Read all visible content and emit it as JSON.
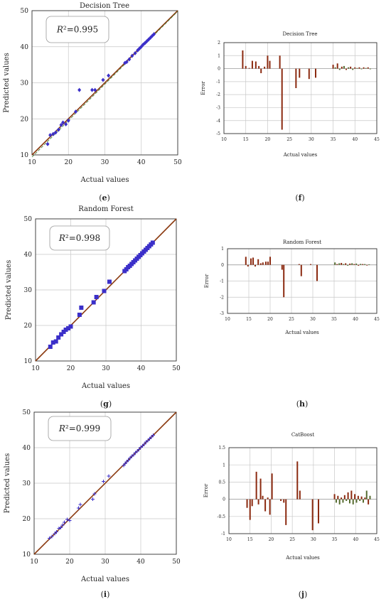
{
  "colors": {
    "marker": "#3b2fc9",
    "line": "#8b3a10",
    "bar": "#8b2a10",
    "bar_alt": "#556b2f",
    "grid": "#c8c8c8",
    "axis": "#333333"
  },
  "chart_data": [
    {
      "id": "e",
      "type": "scatter",
      "panel_label": "(e)",
      "title": "Decision Tree",
      "xlabel": "Actual values",
      "ylabel": "Predicted values",
      "xlim": [
        10,
        50
      ],
      "ylim": [
        10,
        50
      ],
      "xticks": [
        10,
        20,
        30,
        40,
        50
      ],
      "yticks": [
        10,
        20,
        30,
        40,
        50
      ],
      "r2_label": "R²=0.995",
      "marker": "diamond",
      "grid": true,
      "points": [
        [
          14.3,
          13
        ],
        [
          15,
          15.5
        ],
        [
          15.8,
          15.8
        ],
        [
          16.5,
          16.2
        ],
        [
          17.3,
          17
        ],
        [
          18,
          18.3
        ],
        [
          18.5,
          19
        ],
        [
          19.3,
          18.5
        ],
        [
          20,
          19.5
        ],
        [
          22,
          22
        ],
        [
          23,
          28
        ],
        [
          26.5,
          28
        ],
        [
          27.3,
          28
        ],
        [
          29.5,
          30.8
        ],
        [
          31,
          32
        ],
        [
          35.5,
          35.5
        ],
        [
          36,
          35.8
        ],
        [
          36.7,
          36.5
        ],
        [
          37.5,
          37.5
        ],
        [
          38.3,
          38.2
        ],
        [
          39,
          39
        ],
        [
          39.5,
          39.5
        ],
        [
          40,
          40
        ],
        [
          40.5,
          40.6
        ],
        [
          41,
          41
        ],
        [
          41.5,
          41.5
        ],
        [
          42,
          42
        ],
        [
          42.5,
          42.5
        ],
        [
          43,
          43
        ],
        [
          43.5,
          43.5
        ]
      ]
    },
    {
      "id": "f",
      "type": "bar",
      "panel_label": "(f)",
      "title": "Decision Tree",
      "xlabel": "Actual values",
      "ylabel": "Error",
      "xlim": [
        10,
        45
      ],
      "ylim": [
        -5,
        2
      ],
      "xticks": [
        10,
        15,
        20,
        25,
        30,
        35,
        40,
        45
      ],
      "yticks": [
        -5,
        -4,
        -3,
        -2,
        -1,
        0,
        1,
        2
      ],
      "grid": true,
      "points": [
        [
          14.3,
          1.4
        ],
        [
          15,
          0.2
        ],
        [
          15.8,
          0.05
        ],
        [
          16.5,
          0.6
        ],
        [
          17.3,
          0.55
        ],
        [
          18,
          0.2
        ],
        [
          18.5,
          -0.35
        ],
        [
          19.3,
          0.15
        ],
        [
          20,
          1
        ],
        [
          20.5,
          0.6
        ],
        [
          22.8,
          1
        ],
        [
          23.3,
          -4.7
        ],
        [
          26.5,
          -1.5
        ],
        [
          27.3,
          -0.7
        ],
        [
          29.5,
          -0.8
        ],
        [
          31,
          -0.7
        ],
        [
          35,
          0.3
        ],
        [
          35.5,
          0.1
        ],
        [
          36,
          0.4
        ],
        [
          36.5,
          -0.1
        ],
        [
          37,
          0.15
        ],
        [
          37.5,
          0.2
        ],
        [
          38,
          -0.1
        ],
        [
          38.5,
          0.1
        ],
        [
          39,
          0.15
        ],
        [
          39.5,
          -0.1
        ],
        [
          40,
          0.1
        ],
        [
          40.5,
          0.05
        ],
        [
          41,
          0.1
        ],
        [
          41.5,
          -0.05
        ],
        [
          42,
          0.1
        ],
        [
          42.5,
          0.05
        ],
        [
          43,
          0.1
        ],
        [
          43.5,
          -0.05
        ]
      ]
    },
    {
      "id": "g",
      "type": "scatter",
      "panel_label": "(g)",
      "title": "Random Forest",
      "xlabel": "Actual values",
      "ylabel": "Predicted values",
      "xlim": [
        10,
        50
      ],
      "ylim": [
        10,
        50
      ],
      "xticks": [
        10,
        20,
        30,
        40,
        50
      ],
      "yticks": [
        10,
        20,
        30,
        40,
        50
      ],
      "r2_label": "R²=0.998",
      "marker": "square",
      "grid": true,
      "points": [
        [
          14.2,
          14
        ],
        [
          15,
          15.2
        ],
        [
          15.8,
          15.5
        ],
        [
          16.5,
          16.6
        ],
        [
          17.3,
          17.5
        ],
        [
          18,
          18.2
        ],
        [
          18.6,
          18.8
        ],
        [
          19.3,
          19.2
        ],
        [
          20,
          19.7
        ],
        [
          22.5,
          23
        ],
        [
          23,
          25
        ],
        [
          26.5,
          26.5
        ],
        [
          27.3,
          28
        ],
        [
          29.5,
          29.7
        ],
        [
          31,
          32.3
        ],
        [
          35.3,
          35.3
        ],
        [
          35.8,
          35.8
        ],
        [
          36.3,
          36.4
        ],
        [
          36.8,
          36.8
        ],
        [
          37.3,
          37.3
        ],
        [
          37.8,
          37.8
        ],
        [
          38.3,
          38.3
        ],
        [
          38.8,
          38.8
        ],
        [
          39.3,
          39.3
        ],
        [
          39.8,
          39.8
        ],
        [
          40.3,
          40.3
        ],
        [
          40.8,
          40.8
        ],
        [
          41.3,
          41.3
        ],
        [
          41.8,
          41.8
        ],
        [
          42.3,
          42.3
        ],
        [
          42.8,
          42.8
        ],
        [
          43.3,
          43.3
        ]
      ]
    },
    {
      "id": "h",
      "type": "bar",
      "panel_label": "(h)",
      "title": "Random Forest",
      "xlabel": "Actual values",
      "ylabel": "Error",
      "xlim": [
        10,
        45
      ],
      "ylim": [
        -3,
        1
      ],
      "xticks": [
        10,
        15,
        20,
        25,
        30,
        35,
        40,
        45
      ],
      "yticks": [
        -3,
        -2,
        -1,
        0,
        1
      ],
      "grid": true,
      "points": [
        [
          14.3,
          0.5
        ],
        [
          14.8,
          -0.1
        ],
        [
          15.5,
          0.4
        ],
        [
          16,
          0.45
        ],
        [
          16.5,
          -0.1
        ],
        [
          17.2,
          0.35
        ],
        [
          17.8,
          0.1
        ],
        [
          18.3,
          0.15
        ],
        [
          19,
          0.2
        ],
        [
          19.5,
          0.2
        ],
        [
          20,
          0.5
        ],
        [
          22.8,
          -0.3
        ],
        [
          23.2,
          -2
        ],
        [
          26.8,
          0.05
        ],
        [
          27.3,
          -0.7
        ],
        [
          29.5,
          0.05
        ],
        [
          31,
          -1
        ],
        [
          35.2,
          0.15
        ],
        [
          35.7,
          0.05
        ],
        [
          36.2,
          0.1
        ],
        [
          36.7,
          0.12
        ],
        [
          37.2,
          0.05
        ],
        [
          37.7,
          0.1
        ],
        [
          38.2,
          -0.05
        ],
        [
          38.7,
          0.08
        ],
        [
          39.2,
          0.1
        ],
        [
          39.7,
          0.05
        ],
        [
          40.2,
          0.08
        ],
        [
          40.7,
          -0.05
        ],
        [
          41.2,
          0.06
        ],
        [
          41.7,
          0.05
        ],
        [
          42.2,
          0.05
        ],
        [
          42.7,
          -0.04
        ],
        [
          43.2,
          0.03
        ]
      ]
    },
    {
      "id": "i",
      "type": "scatter",
      "panel_label": "(i)",
      "title": "",
      "xlabel": "Actual values",
      "ylabel": "Predicted values",
      "xlim": [
        10,
        50
      ],
      "ylim": [
        10,
        50
      ],
      "xticks": [
        10,
        20,
        30,
        40,
        50
      ],
      "yticks": [
        10,
        20,
        30,
        40,
        50
      ],
      "r2_label": "R²=0.999",
      "marker": "plus",
      "grid": true,
      "points": [
        [
          14.3,
          14.5
        ],
        [
          15,
          15
        ],
        [
          15.8,
          15.8
        ],
        [
          16.3,
          16.3
        ],
        [
          17,
          17.3
        ],
        [
          17.5,
          17.5
        ],
        [
          18,
          18.2
        ],
        [
          18.5,
          19
        ],
        [
          19.3,
          19.8
        ],
        [
          20,
          19.5
        ],
        [
          22.5,
          23
        ],
        [
          23,
          24
        ],
        [
          26.5,
          25.5
        ],
        [
          27,
          27
        ],
        [
          29.5,
          30.5
        ],
        [
          31,
          32
        ],
        [
          35.2,
          35
        ],
        [
          35.6,
          35.5
        ],
        [
          36,
          36
        ],
        [
          36.5,
          36.5
        ],
        [
          37,
          37.1
        ],
        [
          37.5,
          37.6
        ],
        [
          38,
          38
        ],
        [
          38.5,
          38.6
        ],
        [
          39,
          39
        ],
        [
          39.5,
          39.5
        ],
        [
          40,
          40.1
        ],
        [
          40.5,
          40.5
        ],
        [
          41,
          41
        ],
        [
          41.5,
          41.6
        ],
        [
          42,
          42
        ],
        [
          42.5,
          42.5
        ],
        [
          43,
          43
        ],
        [
          43.5,
          43.5
        ]
      ]
    },
    {
      "id": "j",
      "type": "bar",
      "panel_label": "(j)",
      "title": "CatBoost",
      "xlabel": "Actual values",
      "ylabel": "Error",
      "xlim": [
        10,
        45
      ],
      "ylim": [
        -1,
        1.5
      ],
      "xticks": [
        10,
        15,
        20,
        25,
        30,
        35,
        40,
        45
      ],
      "yticks": [
        -1,
        -0.5,
        0,
        0.5,
        1,
        1.5
      ],
      "grid": true,
      "points": [
        [
          14.3,
          -0.25
        ],
        [
          15,
          -0.6
        ],
        [
          15.5,
          -0.2
        ],
        [
          16.5,
          0.8
        ],
        [
          17,
          -0.15
        ],
        [
          17.5,
          0.6
        ],
        [
          18,
          0.1
        ],
        [
          18.6,
          -0.35
        ],
        [
          19.2,
          0.05
        ],
        [
          19.7,
          -0.45
        ],
        [
          20.2,
          0.75
        ],
        [
          22.3,
          -0.05
        ],
        [
          23,
          -0.1
        ],
        [
          23.5,
          -0.75
        ],
        [
          26.2,
          1.1
        ],
        [
          26.8,
          0.25
        ],
        [
          29.8,
          -0.9
        ],
        [
          31.2,
          -0.7
        ],
        [
          35,
          0.15
        ],
        [
          35.4,
          -0.1
        ],
        [
          35.8,
          0.1
        ],
        [
          36.2,
          -0.15
        ],
        [
          36.6,
          0.05
        ],
        [
          37,
          -0.1
        ],
        [
          37.4,
          0.12
        ],
        [
          37.8,
          -0.05
        ],
        [
          38.2,
          0.2
        ],
        [
          38.6,
          -0.12
        ],
        [
          39,
          0.25
        ],
        [
          39.4,
          -0.15
        ],
        [
          39.8,
          0.15
        ],
        [
          40.2,
          -0.1
        ],
        [
          40.6,
          0.1
        ],
        [
          41,
          -0.05
        ],
        [
          41.4,
          0.08
        ],
        [
          41.8,
          -0.1
        ],
        [
          42.2,
          0.05
        ],
        [
          42.6,
          0.25
        ],
        [
          43,
          -0.15
        ],
        [
          43.4,
          0.1
        ]
      ]
    }
  ]
}
